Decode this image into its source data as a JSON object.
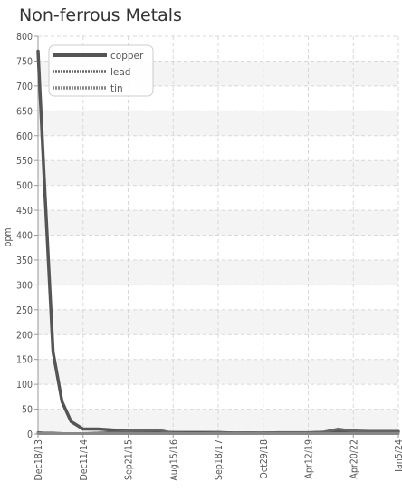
{
  "chart_data": {
    "type": "line",
    "title": "Non-ferrous Metals",
    "ylabel": "ppm",
    "xlabel": "",
    "ylim": [
      0,
      800
    ],
    "yticks": [
      0,
      50,
      100,
      150,
      200,
      250,
      300,
      350,
      400,
      450,
      500,
      550,
      600,
      650,
      700,
      750,
      800
    ],
    "x_tick_labels": [
      "Dec18/13",
      "Dec11/14",
      "Sep21/15",
      "Aug15/16",
      "Sep18/17",
      "Oct29/18",
      "Apr12/19",
      "Apr20/22",
      "Jan5/24"
    ],
    "legend_position": "top-left",
    "grid": true,
    "x": [
      0,
      0.4,
      1,
      1.6,
      2.2,
      3,
      4,
      5,
      6,
      7,
      8,
      9,
      10,
      11,
      12,
      13,
      14,
      15,
      16,
      17,
      18,
      19,
      20,
      21,
      22,
      23,
      24
    ],
    "series": [
      {
        "name": "copper",
        "color": "#555555",
        "style": "solid",
        "values": [
          770,
          520,
          165,
          65,
          25,
          10,
          10,
          8,
          6,
          5,
          4,
          3,
          3,
          3,
          3,
          2,
          2,
          2,
          2,
          2,
          2,
          3,
          5,
          6,
          5,
          5,
          5
        ]
      },
      {
        "name": "lead",
        "color": "#666666",
        "style": "dotted",
        "values": [
          3,
          2,
          2,
          1,
          1,
          1,
          2,
          3,
          6,
          7,
          8,
          2,
          1,
          1,
          3,
          2,
          1,
          2,
          3,
          3,
          3,
          4,
          10,
          6,
          4,
          4,
          4
        ]
      },
      {
        "name": "tin",
        "color": "#888888",
        "style": "dotted",
        "values": [
          1,
          1,
          1,
          1,
          1,
          1,
          1,
          1,
          1,
          1,
          1,
          1,
          1,
          1,
          1,
          1,
          1,
          1,
          1,
          1,
          1,
          1,
          1,
          1,
          1,
          1,
          1
        ]
      }
    ]
  }
}
